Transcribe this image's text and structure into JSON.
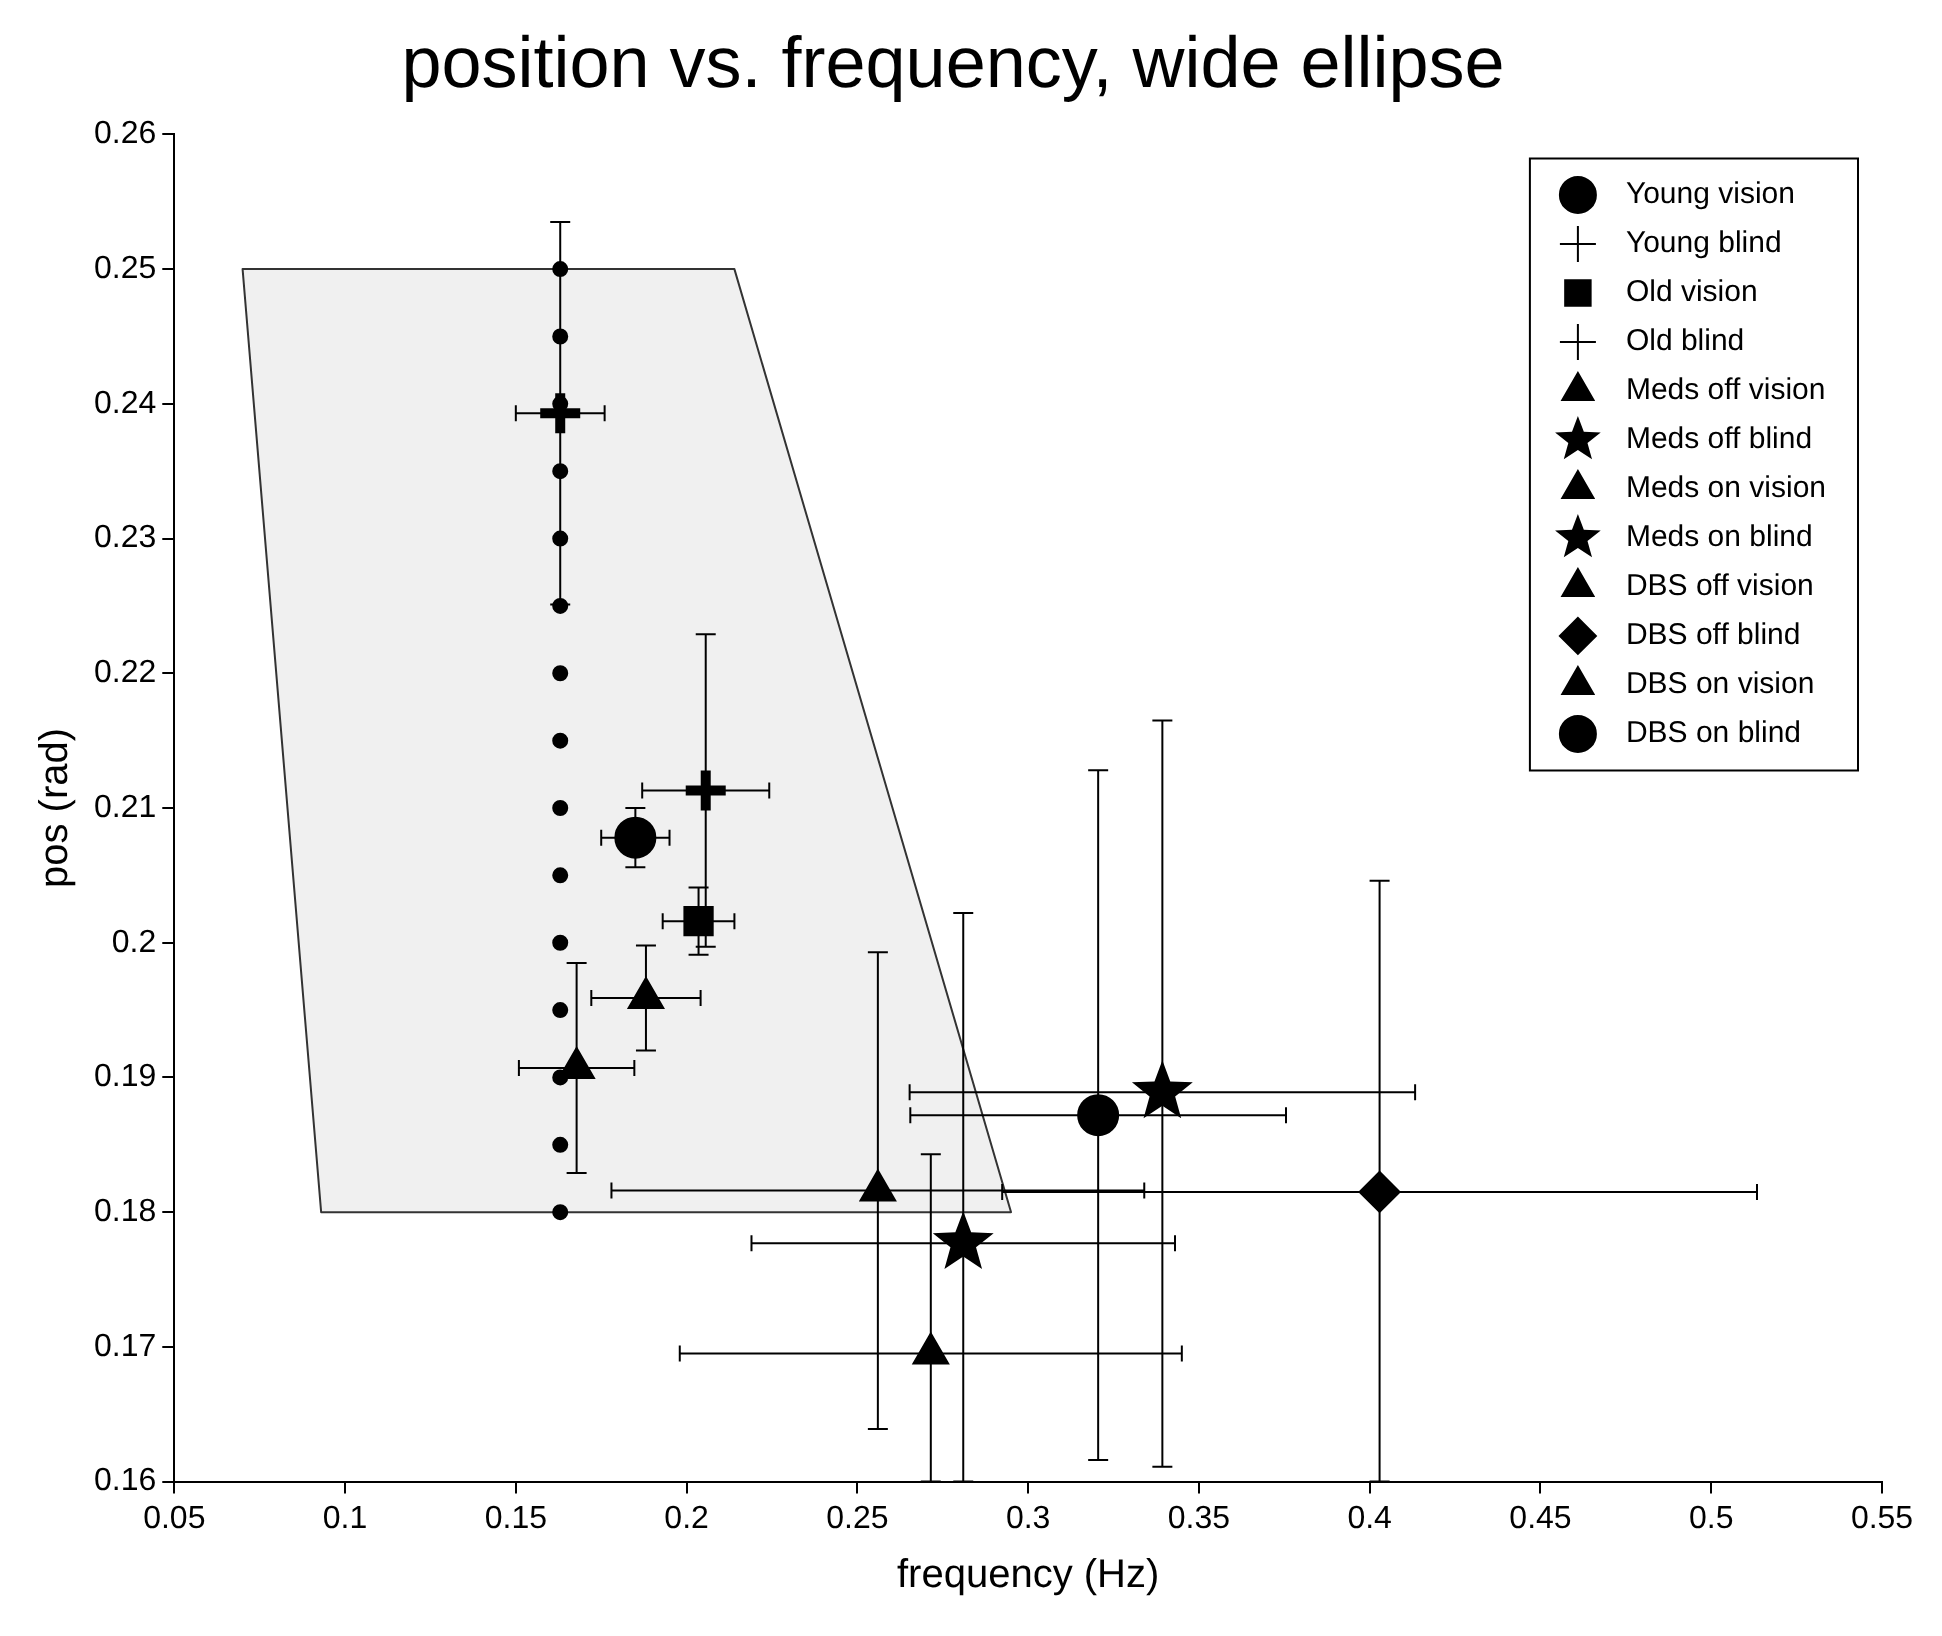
{
  "chart_data": {
    "type": "scatter",
    "title": "position vs. frequency, wide ellipse",
    "xlabel": "frequency (Hz)",
    "ylabel": "pos (rad)",
    "xlim": [
      0.05,
      0.55
    ],
    "xticks": [
      0.05,
      0.1,
      0.15,
      0.2,
      0.25,
      0.3,
      0.35,
      0.4,
      0.45,
      0.5,
      0.55
    ],
    "ylim": [
      0.16,
      0.26
    ],
    "yticks": [
      0.16,
      0.17,
      0.18,
      0.19,
      0.2,
      0.21,
      0.22,
      0.23,
      0.24,
      0.25,
      0.26
    ],
    "grid": false,
    "legend": "top right",
    "series": [
      {
        "type": "area",
        "color": "#f0f0f0",
        "x": [
          0.07,
          0.214,
          0.295,
          0.093
        ],
        "values": [
          0.25,
          0.25,
          0.18,
          0.18
        ]
      },
      {
        "color": "#000000",
        "marker": "circle",
        "x": [
          0.163,
          0.163,
          0.163,
          0.163,
          0.163,
          0.163,
          0.163,
          0.163,
          0.163,
          0.163,
          0.163,
          0.163,
          0.163,
          0.163,
          0.163
        ],
        "values": [
          0.18,
          0.185,
          0.19,
          0.195,
          0.2,
          0.205,
          0.21,
          0.215,
          0.22,
          0.225,
          0.23,
          0.235,
          0.24,
          0.245,
          0.25
        ]
      },
      {
        "name": "Young vision",
        "color": "#000000",
        "marker": "circle",
        "x": [
          0.185
        ],
        "values": [
          0.2078
        ],
        "errors": [
          0.0022
        ],
        "xerrors": [
          0.01
        ]
      },
      {
        "name": "Young blind",
        "color": "#000000",
        "marker": "cross",
        "x": [
          0.163
        ],
        "values": [
          0.2393
        ],
        "errors": [
          0.0142
        ],
        "xerrors": [
          0.013
        ]
      },
      {
        "name": "Old vision",
        "color": "#000000",
        "marker": "square",
        "x": [
          0.2035
        ],
        "values": [
          0.2016
        ],
        "errors": [
          0.0025
        ],
        "xerrors": [
          0.0105
        ]
      },
      {
        "name": "Old blind",
        "color": "#000000",
        "marker": "cross",
        "x": [
          0.2056
        ],
        "values": [
          0.2113
        ],
        "errors": [
          0.0116
        ],
        "xerrors": [
          0.0186
        ]
      },
      {
        "name": "Meds off vision",
        "color": "#000000",
        "marker": "triangle",
        "x": [
          0.1678
        ],
        "values": [
          0.1907
        ],
        "errors": [
          0.0078
        ],
        "xerrors": [
          0.0169
        ]
      },
      {
        "name": "Meds off blind",
        "color": "#000000",
        "marker": "star",
        "x": [
          0.281
        ],
        "values": [
          0.1777
        ],
        "errors": [
          [
            0.16,
            0.2022
          ]
        ],
        "xerrors": [
          0.062
        ]
      },
      {
        "name": "Meds on vision",
        "color": "#000000",
        "marker": "triangle",
        "x": [
          0.1881
        ],
        "values": [
          0.1959
        ],
        "errors": [
          0.0039
        ],
        "xerrors": [
          0.016
        ]
      },
      {
        "name": "Meds on blind",
        "color": "#000000",
        "marker": "star",
        "x": [
          0.3393
        ],
        "values": [
          0.1889
        ],
        "errors": [
          [
            0.1611,
            0.2165
          ]
        ],
        "xerrors": [
          0.074
        ]
      },
      {
        "name": "DBS off vision",
        "color": "#000000",
        "marker": "triangle",
        "x": [
          0.2715
        ],
        "values": [
          0.1695
        ],
        "errors": [
          [
            0.16,
            0.1843
          ]
        ],
        "xerrors": [
          0.0735
        ]
      },
      {
        "name": "DBS off blind",
        "color": "#000000",
        "marker": "diamond",
        "x": [
          0.4029
        ],
        "values": [
          0.1815
        ],
        "errors": [
          [
            0.16,
            0.2046
          ]
        ],
        "xerrors": [
          0.1105
        ]
      },
      {
        "name": "DBS on vision",
        "color": "#000000",
        "marker": "triangle",
        "x": [
          0.256
        ],
        "values": [
          0.1816
        ],
        "errors": [
          0.0177
        ],
        "xerrors": [
          0.078
        ]
      },
      {
        "name": "DBS on blind",
        "color": "#000000",
        "marker": "circle",
        "x": [
          0.3205
        ],
        "values": [
          0.1872
        ],
        "errors": [
          [
            0.1616,
            0.2128
          ]
        ],
        "xerrors": [
          0.055
        ]
      }
    ]
  }
}
